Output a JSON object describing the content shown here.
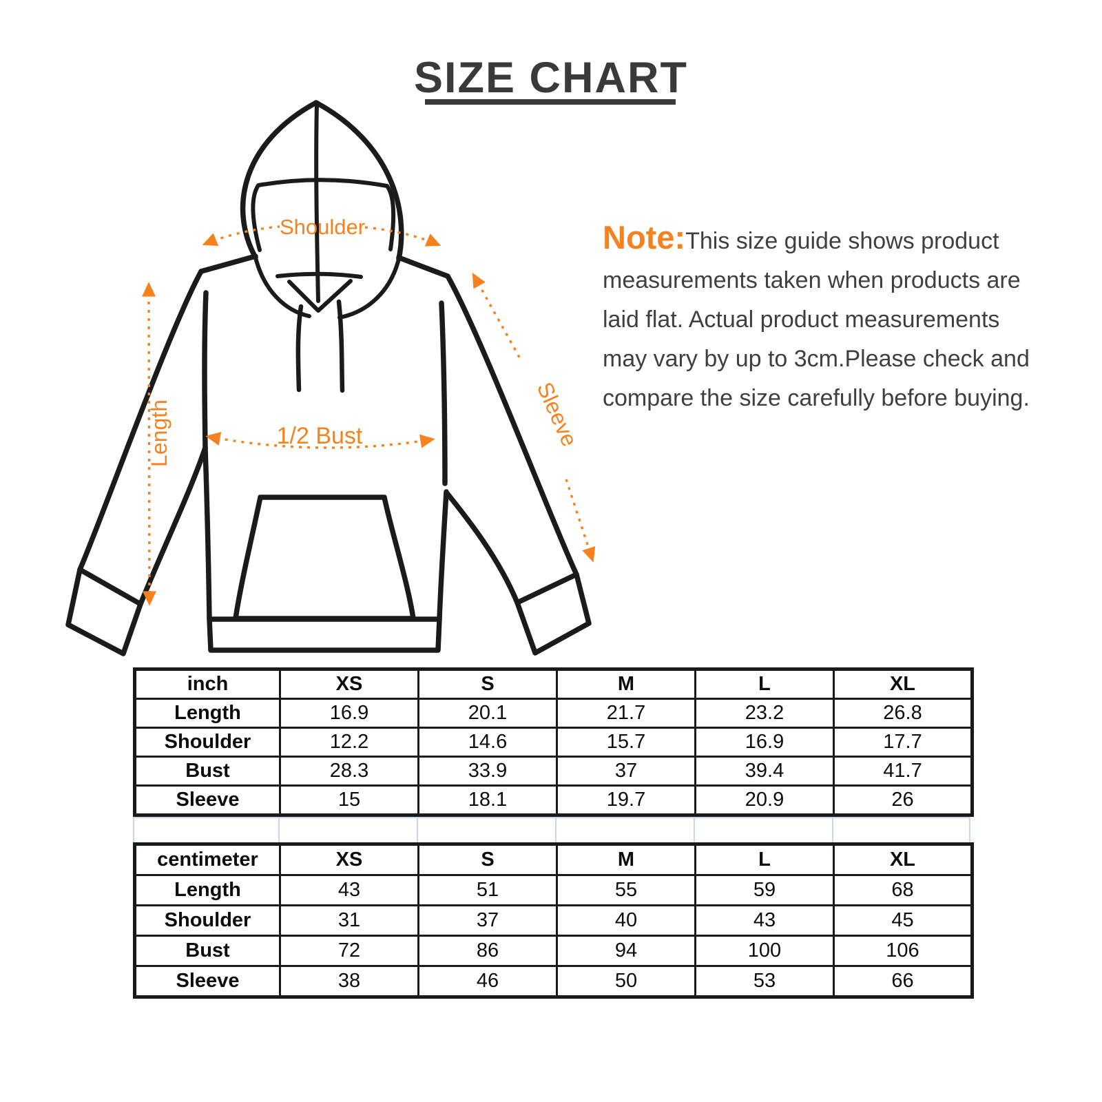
{
  "title": "SIZE CHART",
  "note": {
    "label": "Note:",
    "lines": [
      "This size guide shows product",
      "measurements taken when products are",
      "laid flat. Actual product measurements",
      "may vary by up to 3cm.Please check and",
      "compare the size carefully before buying."
    ]
  },
  "diagram": {
    "labels": {
      "shoulder": "Shoulder",
      "length": "Length",
      "bust": "1/2 Bust",
      "sleeve": "Sleeve"
    },
    "accent_color": "#F6821F",
    "line_color": "#1B1B1B"
  },
  "chart_data": [
    {
      "type": "table",
      "unit": "inch",
      "columns": [
        "inch",
        "XS",
        "S",
        "M",
        "L",
        "XL"
      ],
      "rows": [
        [
          "Length",
          "16.9",
          "20.1",
          "21.7",
          "23.2",
          "26.8"
        ],
        [
          "Shoulder",
          "12.2",
          "14.6",
          "15.7",
          "16.9",
          "17.7"
        ],
        [
          "Bust",
          "28.3",
          "33.9",
          "37",
          "39.4",
          "41.7"
        ],
        [
          "Sleeve",
          "15",
          "18.1",
          "19.7",
          "20.9",
          "26"
        ]
      ]
    },
    {
      "type": "table",
      "unit": "centimeter",
      "columns": [
        "centimeter",
        "XS",
        "S",
        "M",
        "L",
        "XL"
      ],
      "rows": [
        [
          "Length",
          "43",
          "51",
          "55",
          "59",
          "68"
        ],
        [
          "Shoulder",
          "31",
          "37",
          "40",
          "43",
          "45"
        ],
        [
          "Bust",
          "72",
          "86",
          "94",
          "100",
          "106"
        ],
        [
          "Sleeve",
          "38",
          "46",
          "50",
          "53",
          "66"
        ]
      ]
    }
  ],
  "colors": {
    "title_text": "#3A3A3A",
    "note_text": "#3F3F3F",
    "table_border": "#1A1A1A",
    "spacer_gridline": "#CCD6EA"
  }
}
